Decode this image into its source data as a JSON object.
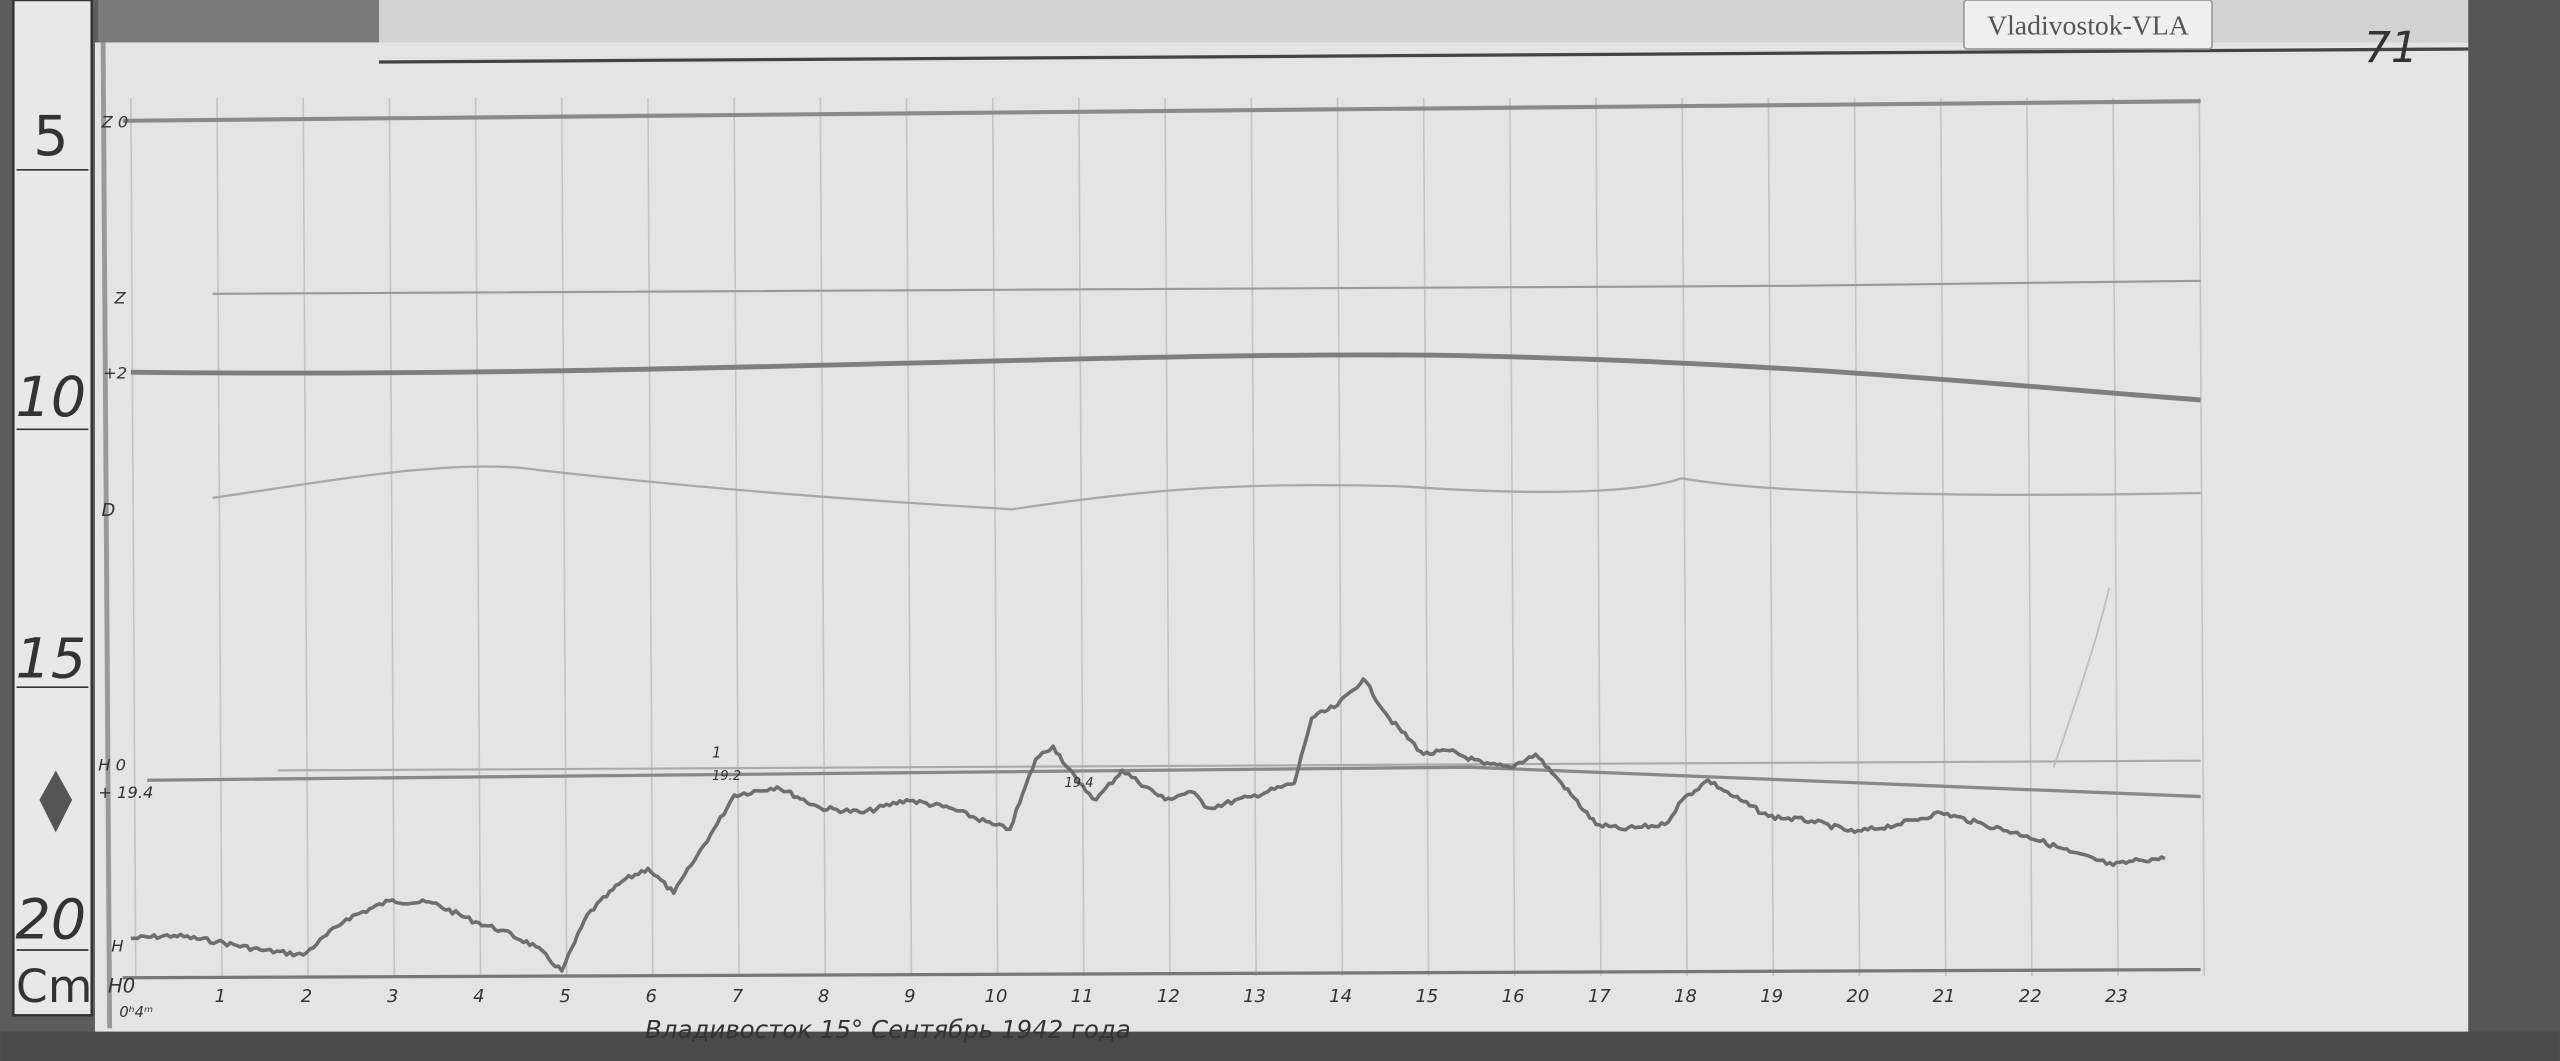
{
  "station_label": "Vladivostok-VLA",
  "sheet_number": "71",
  "caption": "Владивосток 15° Сентябрь 1942 года",
  "ruler": {
    "marks": [
      "5",
      "10",
      "15",
      "20"
    ],
    "unit": "Cm"
  },
  "trace_labels": {
    "z_base": "Z 0",
    "z": "Z",
    "z_scale": "+2",
    "d": "D",
    "h_zero": "H 0",
    "h_value": "+ 19.4",
    "h": "H",
    "h_base": "H0",
    "time_start": "0ʰ4ᵐ"
  },
  "annotations": {
    "a1_mark": "1",
    "a1_value": "19.2",
    "a2_value": "19.4"
  },
  "colors": {
    "paper": "#e4e4e4",
    "trace": "#6e6e6e",
    "frame": "#5a5a5a"
  },
  "chart_data": {
    "type": "line",
    "title": "",
    "xlabel": "",
    "ylabel": "",
    "x_tick_labels": [
      "1",
      "2",
      "3",
      "4",
      "5",
      "6",
      "7",
      "8",
      "9",
      "10",
      "11",
      "12",
      "13",
      "14",
      "15",
      "16",
      "17",
      "18",
      "19",
      "20",
      "21",
      "22",
      "23"
    ],
    "xlim": [
      0,
      24
    ],
    "ylim_cm": [
      4,
      21.5
    ],
    "y_inverted": true,
    "grid": "vertical hourly lines",
    "series": [
      {
        "name": "H",
        "x": [
          0,
          0.5,
          1,
          1.5,
          2,
          2.5,
          3,
          3.5,
          4,
          4.3,
          4.7,
          5,
          5.3,
          5.7,
          6,
          6.3,
          6.5,
          6.8,
          7,
          7.5,
          8,
          8.5,
          9,
          9.5,
          10,
          10.2,
          10.5,
          10.7,
          11,
          11.2,
          11.5,
          12,
          12.3,
          12.5,
          13,
          13.5,
          13.7,
          14,
          14.3,
          14.6,
          15,
          15.3,
          15.7,
          16,
          16.3,
          16.6,
          17,
          17.3,
          17.8,
          18,
          18.3,
          18.6,
          19,
          19.5,
          20,
          20.5,
          21,
          21.5,
          22,
          22.5,
          23,
          23.3,
          23.6
        ],
        "y": [
          20.6,
          20.54,
          20.66,
          20.82,
          20.92,
          20.22,
          19.87,
          19.91,
          20.28,
          20.44,
          20.76,
          21.23,
          20.13,
          19.49,
          19.24,
          19.72,
          19.18,
          18.39,
          17.82,
          17.66,
          18.07,
          18.16,
          17.91,
          18.07,
          18.39,
          18.48,
          17.12,
          16.87,
          17.59,
          17.91,
          17.34,
          17.91,
          17.75,
          18.07,
          17.85,
          17.59,
          16.33,
          16.08,
          15.57,
          16.33,
          17.03,
          16.96,
          17.22,
          17.28,
          17.03,
          17.59,
          18.39,
          18.48,
          18.39,
          17.91,
          17.53,
          17.85,
          18.23,
          18.32,
          18.54,
          18.39,
          18.16,
          18.39,
          18.61,
          18.92,
          19.18,
          19.08,
          19.05
        ]
      }
    ]
  }
}
